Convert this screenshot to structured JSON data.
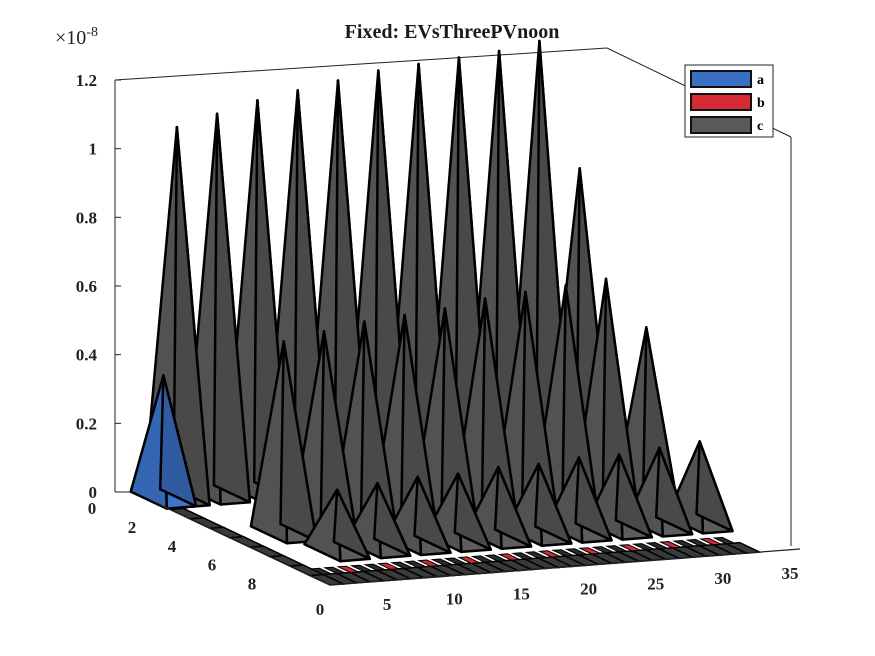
{
  "chart_data": {
    "type": "bar3d",
    "title": "Fixed: EVsThreePVnoon",
    "z_multiplier": "×10",
    "z_multiplier_exp": "-8",
    "x_ticks": [
      "0",
      "5",
      "10",
      "15",
      "20",
      "25",
      "30",
      "35"
    ],
    "y_ticks": [
      "0",
      "2",
      "4",
      "6",
      "8"
    ],
    "z_ticks": [
      "0",
      "0.2",
      "0.4",
      "0.6",
      "0.8",
      "1",
      "1.2"
    ],
    "xlim": [
      0,
      35
    ],
    "ylim": [
      0,
      9
    ],
    "zlim": [
      0,
      1.2
    ],
    "legend_position": "top-right",
    "colors": {
      "a": "#3a6fc4",
      "b": "#d42a34",
      "c": "#595959"
    },
    "series": [
      {
        "name": "a",
        "x": [
          1
        ],
        "y": [
          0
        ],
        "z": [
          0.36
        ]
      },
      {
        "name": "b",
        "x": [],
        "y": [],
        "z": []
      },
      {
        "name": "c",
        "x": [
          2,
          5,
          8,
          11,
          14,
          17,
          20,
          23,
          26,
          29,
          32,
          4,
          7,
          10,
          13,
          16,
          19,
          22,
          25,
          28,
          31,
          5,
          8,
          11,
          14,
          17,
          20,
          23,
          26,
          29,
          32
        ],
        "y": [
          0,
          0,
          0,
          0,
          0,
          0,
          0,
          0,
          0,
          0,
          0,
          4,
          4,
          4,
          4,
          4,
          4,
          4,
          4,
          4,
          4,
          6,
          6,
          6,
          6,
          6,
          6,
          6,
          6,
          6,
          6
        ],
        "z": [
          1.08,
          1.11,
          1.14,
          1.16,
          1.18,
          1.2,
          1.21,
          1.22,
          1.23,
          1.25,
          0.87,
          0.56,
          0.58,
          0.6,
          0.61,
          0.62,
          0.64,
          0.65,
          0.66,
          0.67,
          0.52,
          0.18,
          0.19,
          0.2,
          0.2,
          0.21,
          0.21,
          0.22,
          0.22,
          0.23,
          0.24
        ]
      }
    ]
  }
}
